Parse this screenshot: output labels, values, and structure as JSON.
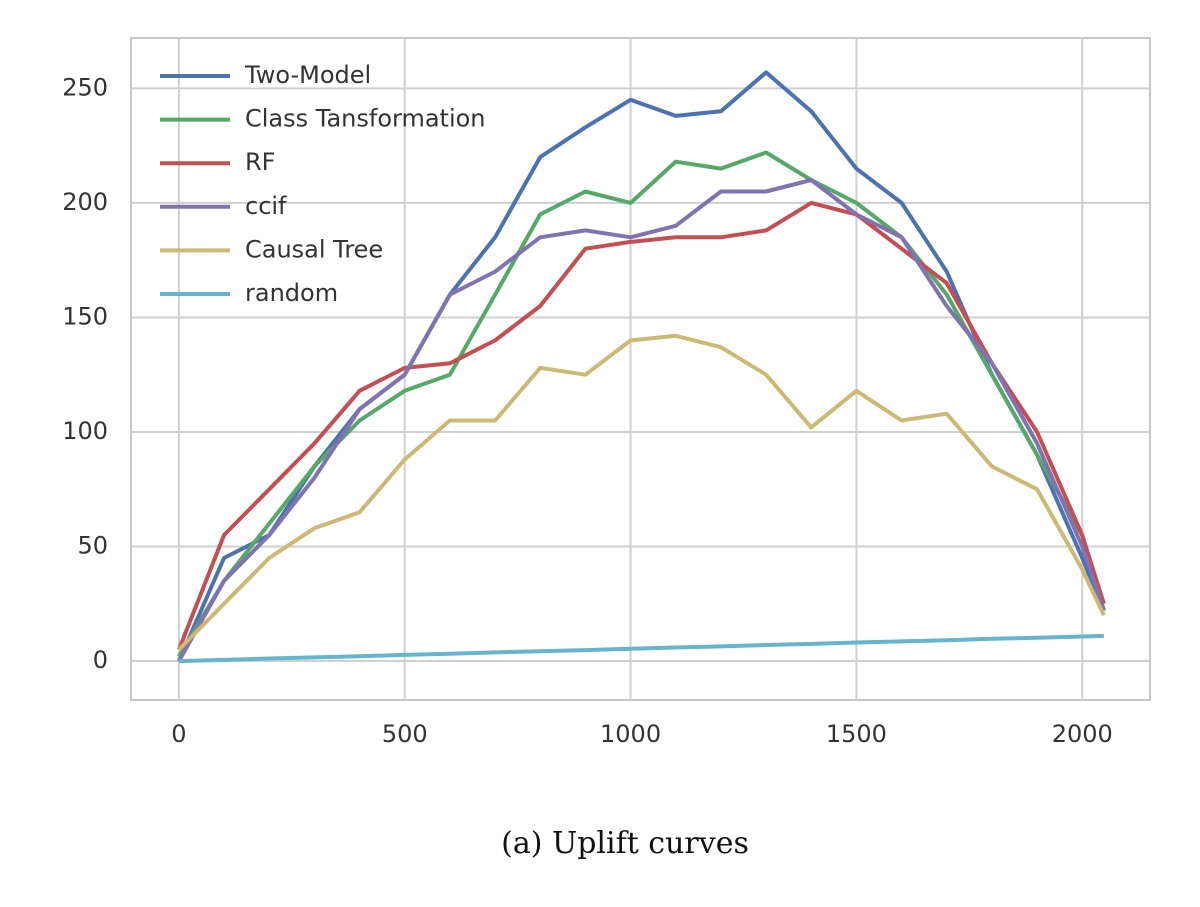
{
  "chart_data": {
    "type": "line",
    "caption": "(a) Uplift curves",
    "x": [
      0,
      100,
      200,
      300,
      400,
      500,
      600,
      700,
      800,
      900,
      1000,
      1100,
      1200,
      1300,
      1400,
      1500,
      1600,
      1700,
      1800,
      1900,
      2000,
      2048
    ],
    "series": [
      {
        "name": "Two-Model",
        "color": "#4c72b0",
        "values": [
          0,
          45,
          55,
          85,
          110,
          125,
          160,
          185,
          220,
          233,
          245,
          238,
          240,
          257,
          240,
          215,
          200,
          170,
          125,
          90,
          45,
          22
        ]
      },
      {
        "name": "Class Tansformation",
        "color": "#55a868",
        "values": [
          2,
          35,
          60,
          85,
          105,
          118,
          125,
          160,
          195,
          205,
          200,
          218,
          215,
          222,
          210,
          200,
          185,
          160,
          125,
          90,
          55,
          22
        ]
      },
      {
        "name": "RF",
        "color": "#c44e52",
        "values": [
          5,
          55,
          75,
          95,
          118,
          128,
          130,
          140,
          155,
          180,
          183,
          185,
          185,
          188,
          200,
          195,
          180,
          165,
          130,
          100,
          55,
          25
        ]
      },
      {
        "name": "ccif",
        "color": "#8172b2",
        "values": [
          0,
          35,
          55,
          80,
          110,
          125,
          160,
          170,
          185,
          188,
          185,
          190,
          205,
          205,
          210,
          195,
          185,
          155,
          130,
          95,
          50,
          22
        ]
      },
      {
        "name": "Causal Tree",
        "color": "#ccb974",
        "values": [
          5,
          25,
          45,
          58,
          65,
          88,
          105,
          105,
          128,
          125,
          140,
          142,
          137,
          125,
          102,
          118,
          105,
          108,
          85,
          75,
          40,
          20
        ]
      },
      {
        "name": "random",
        "color": "#64b5cd",
        "values": [
          0,
          0.5,
          1.1,
          1.6,
          2.1,
          2.7,
          3.2,
          3.8,
          4.3,
          4.8,
          5.4,
          5.9,
          6.4,
          7.0,
          7.5,
          8.1,
          8.6,
          9.1,
          9.7,
          10.2,
          10.7,
          11
        ]
      }
    ],
    "xlim": [
      -106,
      2150
    ],
    "ylim": [
      -17,
      272
    ],
    "xticks": [
      0,
      500,
      1000,
      1500,
      2000
    ],
    "yticks": [
      0,
      50,
      100,
      150,
      200,
      250
    ],
    "grid": true,
    "legend": "upper-left"
  }
}
